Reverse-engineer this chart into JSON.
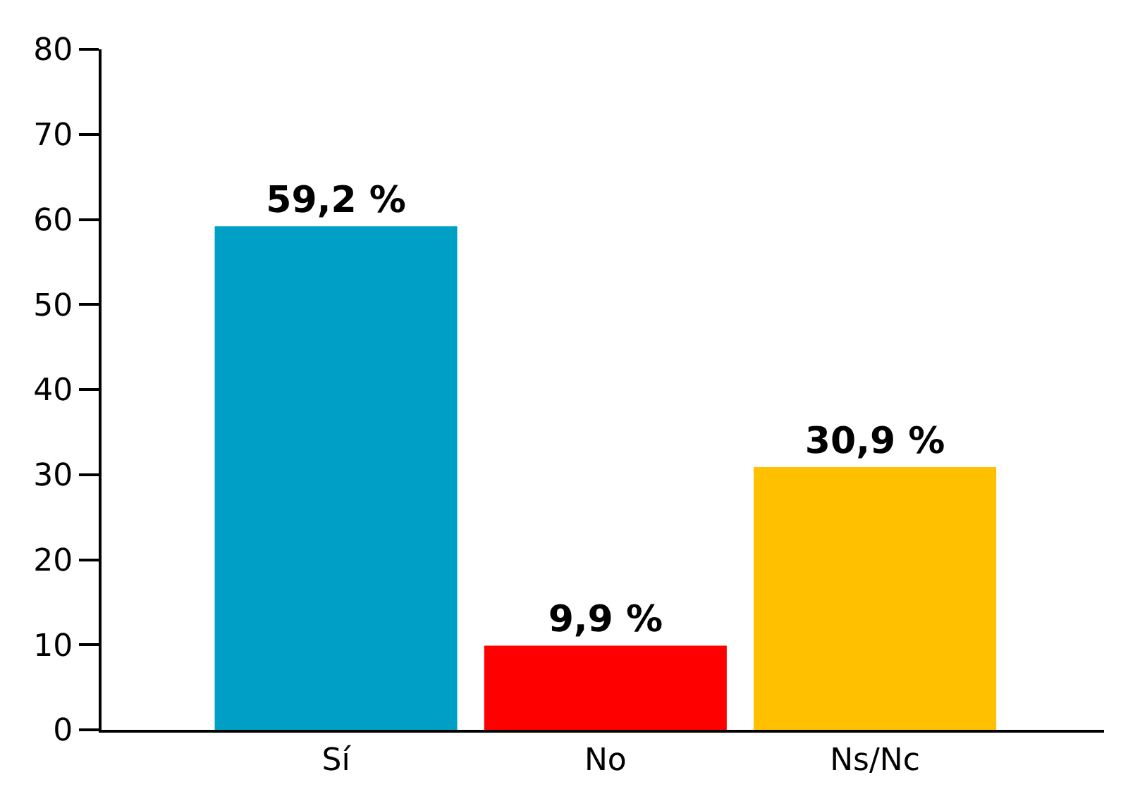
{
  "chart_data": {
    "type": "bar",
    "categories": [
      "Sí",
      "No",
      "Ns/Nc"
    ],
    "values": [
      59.2,
      9.9,
      30.9
    ],
    "colors": [
      "#00a0c6",
      "#ff0000",
      "#ffc000"
    ],
    "value_labels": [
      "59,2 %",
      "9,9 %",
      "30,9 %"
    ],
    "ylim": [
      0,
      80
    ],
    "yticks": [
      0,
      10,
      20,
      30,
      40,
      50,
      60,
      70,
      80
    ],
    "grid": false
  }
}
